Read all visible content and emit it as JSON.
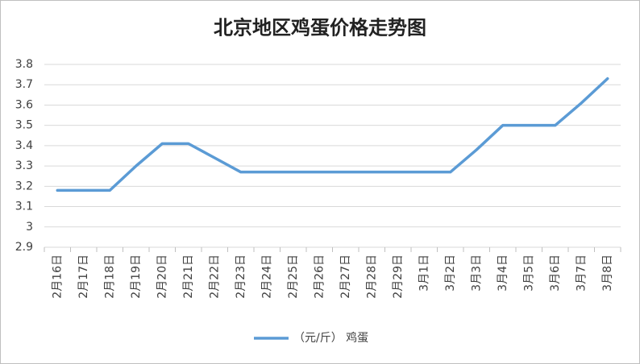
{
  "chart_data": {
    "type": "line",
    "title": "北京地区鸡蛋价格走势图",
    "categories": [
      "2月16日",
      "2月17日",
      "2月18日",
      "2月19日",
      "2月20日",
      "2月21日",
      "2月22日",
      "2月23日",
      "2月24日",
      "2月25日",
      "2月26日",
      "2月27日",
      "2月28日",
      "2月29日",
      "3月1日",
      "3月2日",
      "3月3日",
      "3月4日",
      "3月5日",
      "3月6日",
      "3月7日",
      "3月8日"
    ],
    "series": [
      {
        "name": "（元/斤） 鸡蛋",
        "color": "#5b9bd5",
        "values": [
          3.18,
          3.18,
          3.18,
          3.3,
          3.41,
          3.41,
          3.34,
          3.27,
          3.27,
          3.27,
          3.27,
          3.27,
          3.27,
          3.27,
          3.27,
          3.27,
          3.38,
          3.5,
          3.5,
          3.5,
          3.61,
          3.73
        ]
      }
    ],
    "ylim": [
      2.9,
      3.8
    ],
    "yticks": [
      2.9,
      3,
      3.1,
      3.2,
      3.3,
      3.4,
      3.5,
      3.6,
      3.7,
      3.8
    ],
    "grid": true,
    "legend": "bottom"
  }
}
